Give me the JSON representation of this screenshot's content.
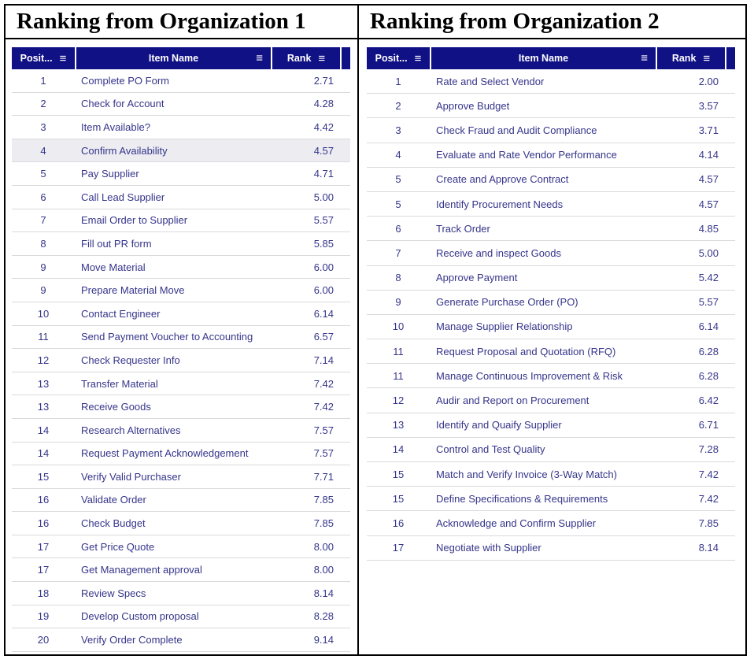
{
  "menu_icon": "≡",
  "colors": {
    "header_bg": "#111186",
    "header_text": "#ffffff",
    "row_text": "#35358b",
    "row_separator": "#dadade",
    "highlight_bg": "#ececf1",
    "border": "#000000"
  },
  "panels": [
    {
      "title": "Ranking from Organization 1",
      "columns": {
        "position": "Posit...",
        "item": "Item Name",
        "rank": "Rank"
      },
      "highlighted_row_index": 3,
      "rows": [
        {
          "position": "1",
          "item": "Complete PO Form",
          "rank": "2.71"
        },
        {
          "position": "2",
          "item": "Check for Account",
          "rank": "4.28"
        },
        {
          "position": "3",
          "item": "Item Available?",
          "rank": "4.42"
        },
        {
          "position": "4",
          "item": "Confirm Availability",
          "rank": "4.57"
        },
        {
          "position": "5",
          "item": "Pay Supplier",
          "rank": "4.71"
        },
        {
          "position": "6",
          "item": "Call Lead Supplier",
          "rank": "5.00"
        },
        {
          "position": "7",
          "item": "Email Order to Supplier",
          "rank": "5.57"
        },
        {
          "position": "8",
          "item": "Fill out PR form",
          "rank": "5.85"
        },
        {
          "position": "9",
          "item": "Move Material",
          "rank": "6.00"
        },
        {
          "position": "9",
          "item": "Prepare Material Move",
          "rank": "6.00"
        },
        {
          "position": "10",
          "item": "Contact Engineer",
          "rank": "6.14"
        },
        {
          "position": "11",
          "item": "Send Payment Voucher to Accounting",
          "rank": "6.57"
        },
        {
          "position": "12",
          "item": "Check Requester Info",
          "rank": "7.14"
        },
        {
          "position": "13",
          "item": "Transfer Material",
          "rank": "7.42"
        },
        {
          "position": "13",
          "item": "Receive Goods",
          "rank": "7.42"
        },
        {
          "position": "14",
          "item": "Research Alternatives",
          "rank": "7.57"
        },
        {
          "position": "14",
          "item": "Request Payment Acknowledgement",
          "rank": "7.57"
        },
        {
          "position": "15",
          "item": "Verify Valid Purchaser",
          "rank": "7.71"
        },
        {
          "position": "16",
          "item": "Validate Order",
          "rank": "7.85"
        },
        {
          "position": "16",
          "item": "Check Budget",
          "rank": "7.85"
        },
        {
          "position": "17",
          "item": "Get Price Quote",
          "rank": "8.00"
        },
        {
          "position": "17",
          "item": "Get Management approval",
          "rank": "8.00"
        },
        {
          "position": "18",
          "item": "Review Specs",
          "rank": "8.14"
        },
        {
          "position": "19",
          "item": "Develop Custom proposal",
          "rank": "8.28"
        },
        {
          "position": "20",
          "item": "Verify Order Complete",
          "rank": "9.14"
        }
      ]
    },
    {
      "title": "Ranking from Organization 2",
      "columns": {
        "position": "Posit...",
        "item": "Item Name",
        "rank": "Rank"
      },
      "highlighted_row_index": null,
      "rows": [
        {
          "position": "1",
          "item": "Rate and Select Vendor",
          "rank": "2.00"
        },
        {
          "position": "2",
          "item": "Approve Budget",
          "rank": "3.57"
        },
        {
          "position": "3",
          "item": "Check Fraud and Audit Compliance",
          "rank": "3.71"
        },
        {
          "position": "4",
          "item": "Evaluate and Rate Vendor Performance",
          "rank": "4.14"
        },
        {
          "position": "5",
          "item": "Create and Approve Contract",
          "rank": "4.57"
        },
        {
          "position": "5",
          "item": "Identify Procurement Needs",
          "rank": "4.57"
        },
        {
          "position": "6",
          "item": "Track Order",
          "rank": "4.85"
        },
        {
          "position": "7",
          "item": "Receive and inspect Goods",
          "rank": "5.00"
        },
        {
          "position": "8",
          "item": "Approve Payment",
          "rank": "5.42"
        },
        {
          "position": "9",
          "item": "Generate Purchase Order (PO)",
          "rank": "5.57"
        },
        {
          "position": "10",
          "item": "Manage Supplier Relationship",
          "rank": "6.14"
        },
        {
          "position": "11",
          "item": "Request Proposal and Quotation (RFQ)",
          "rank": "6.28"
        },
        {
          "position": "11",
          "item": "Manage Continuous Improvement & Risk",
          "rank": "6.28"
        },
        {
          "position": "12",
          "item": "Audir and Report on Procurement",
          "rank": "6.42"
        },
        {
          "position": "13",
          "item": "Identify and Quaify Supplier",
          "rank": "6.71"
        },
        {
          "position": "14",
          "item": "Control and Test Quality",
          "rank": "7.28"
        },
        {
          "position": "15",
          "item": "Match and Verify Invoice (3-Way Match)",
          "rank": "7.42"
        },
        {
          "position": "15",
          "item": "Define Specifications & Requirements",
          "rank": "7.42"
        },
        {
          "position": "16",
          "item": "Acknowledge and Confirm Supplier",
          "rank": "7.85"
        },
        {
          "position": "17",
          "item": "Negotiate with Supplier",
          "rank": "8.14"
        }
      ]
    }
  ]
}
